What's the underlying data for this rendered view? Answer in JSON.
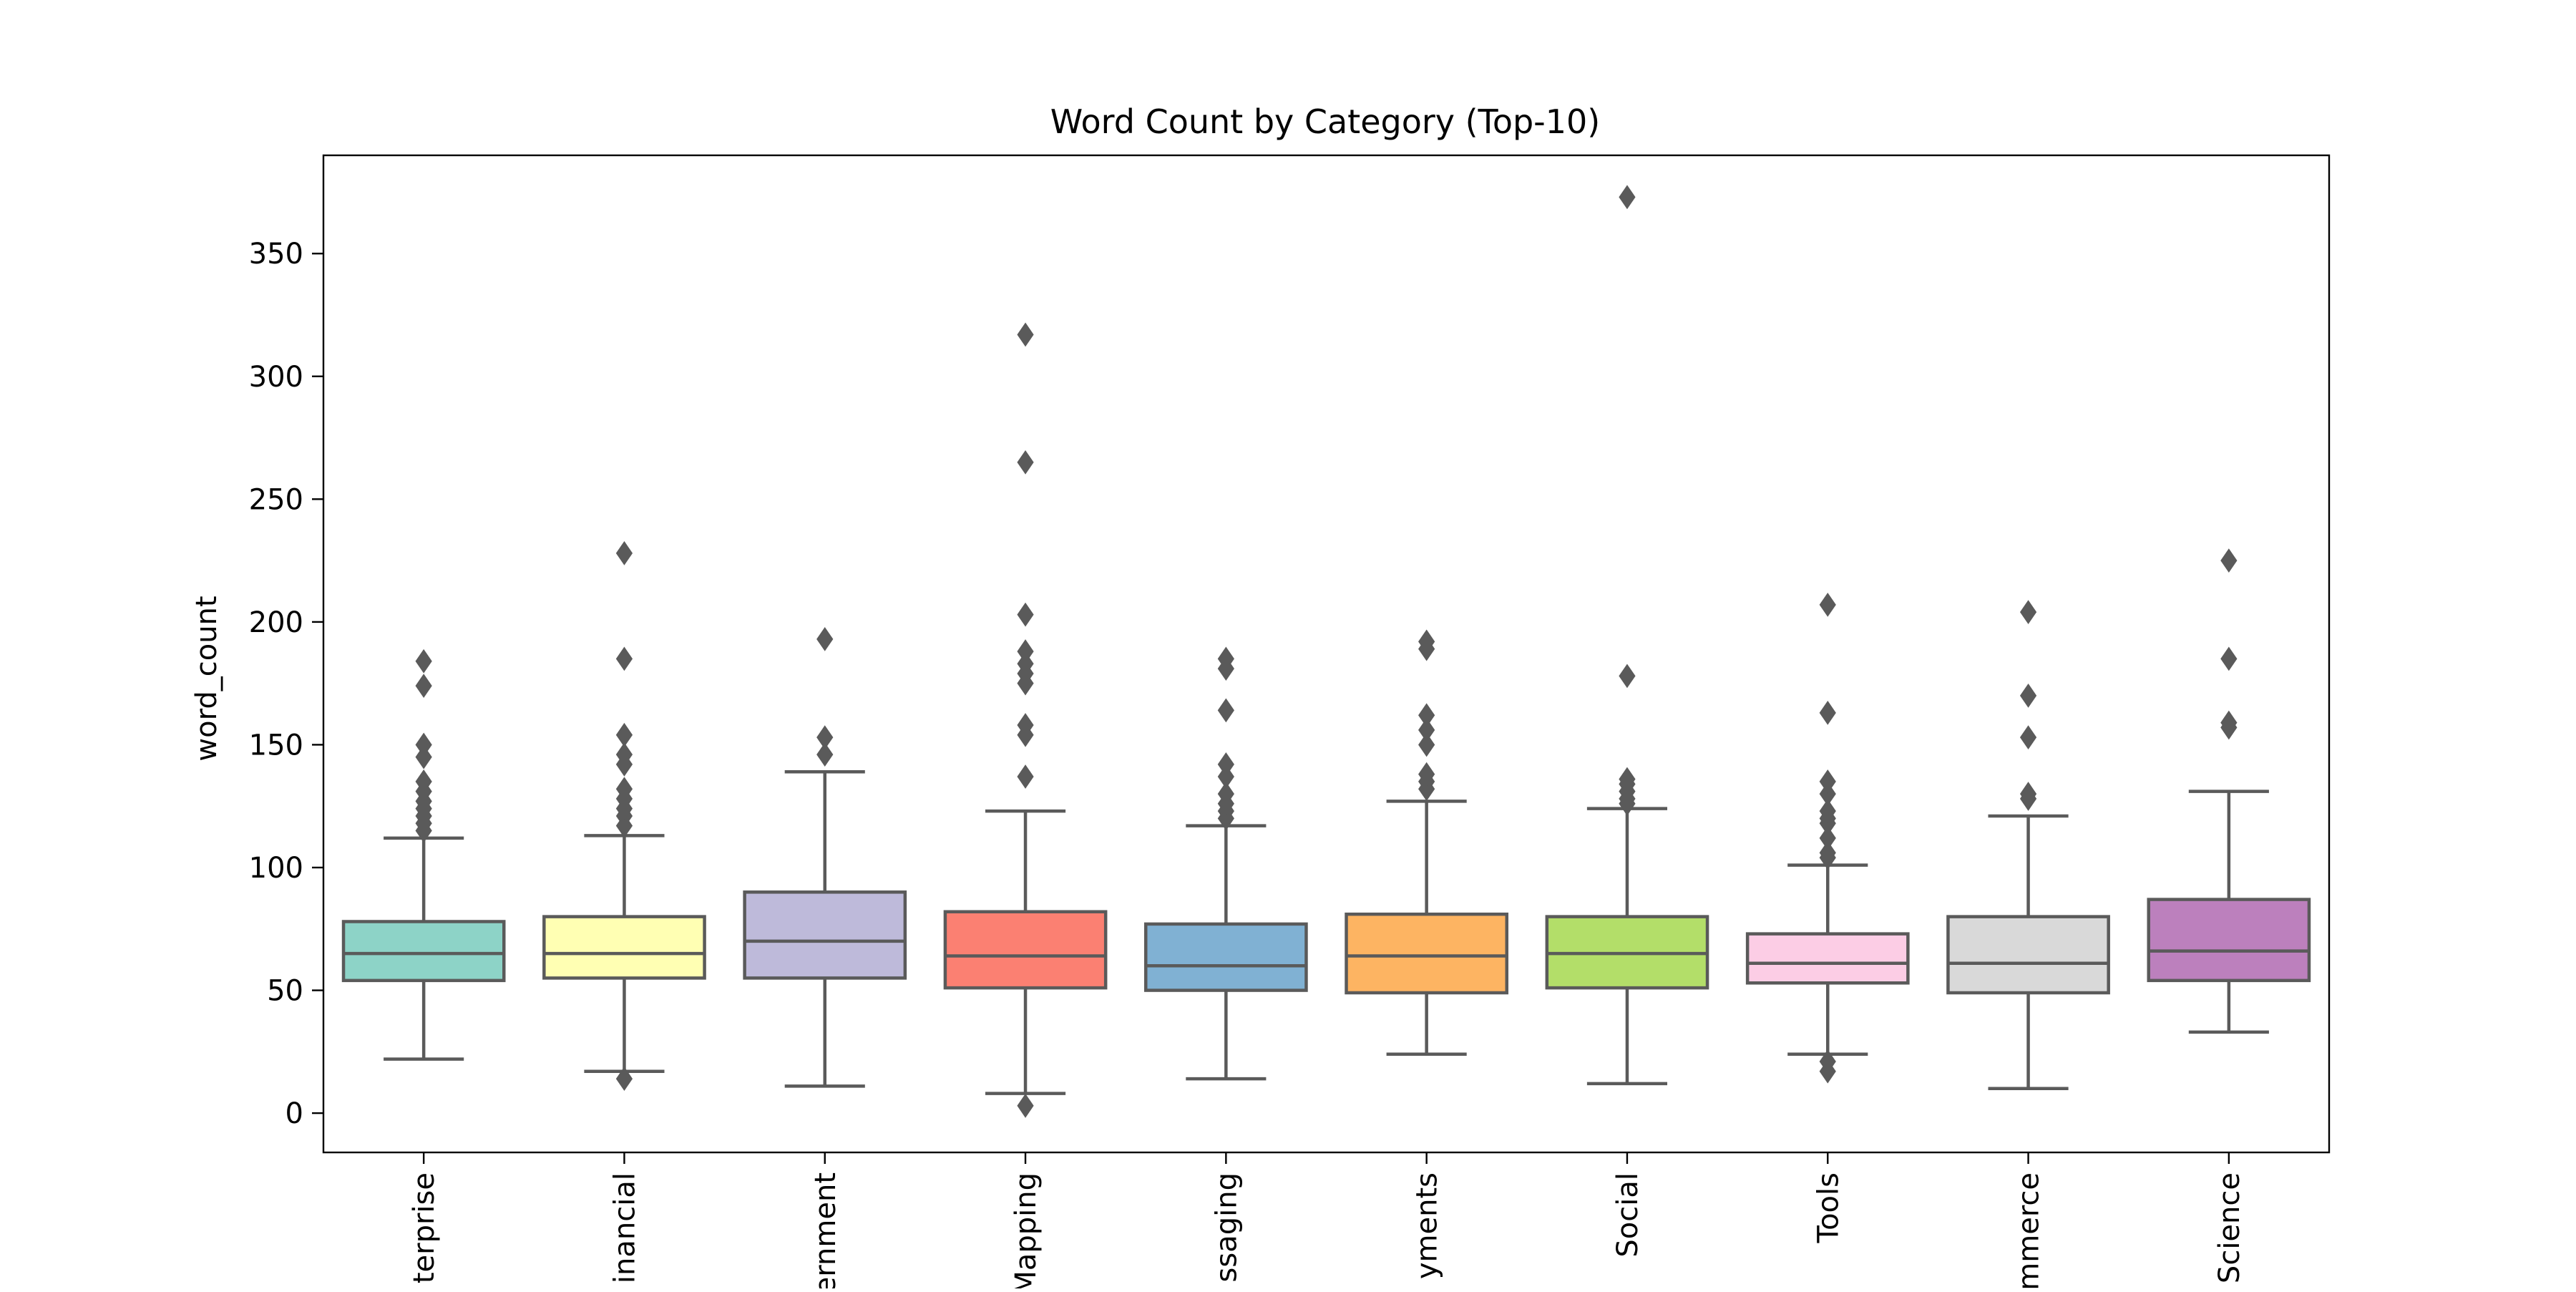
{
  "chart_data": {
    "type": "box",
    "title": "Word Count by Category (Top-10)",
    "xlabel": "",
    "ylabel": "word_count",
    "ylim": [
      -16,
      390
    ],
    "yticks": [
      0,
      50,
      100,
      150,
      200,
      250,
      300,
      350
    ],
    "grid": false,
    "categories": [
      "Enterprise",
      "Financial",
      "Government",
      "Mapping",
      "Messaging",
      "Payments",
      "Social",
      "Tools",
      "eCommerce",
      "Science"
    ],
    "category_labels_visible": [
      "terprise",
      "inancial",
      "ernment",
      "Mapping",
      "ssaging",
      "yments",
      "Social",
      "Tools",
      "mmerce",
      "Science"
    ],
    "colors": [
      "#8dd3c7",
      "#ffffb3",
      "#bebada",
      "#fb8072",
      "#80b1d3",
      "#fdb462",
      "#b3de69",
      "#fccde5",
      "#d9d9d9",
      "#bc80bd"
    ],
    "edge_color": "#5a5a5a",
    "boxes": [
      {
        "category": "Enterprise",
        "whisker_low": 22,
        "q1": 54,
        "median": 65,
        "q3": 78,
        "whisker_high": 112,
        "outliers": [
          115,
          118,
          121,
          124,
          127,
          131,
          135,
          145,
          150,
          174,
          184
        ]
      },
      {
        "category": "Financial",
        "whisker_low": 17,
        "q1": 55,
        "median": 65,
        "q3": 80,
        "whisker_high": 113,
        "outliers": [
          14,
          117,
          121,
          124,
          128,
          132,
          142,
          146,
          154,
          185,
          228
        ]
      },
      {
        "category": "Government",
        "whisker_low": 11,
        "q1": 55,
        "median": 70,
        "q3": 90,
        "whisker_high": 139,
        "outliers": [
          146,
          153,
          193
        ]
      },
      {
        "category": "Mapping",
        "whisker_low": 8,
        "q1": 51,
        "median": 64,
        "q3": 82,
        "whisker_high": 123,
        "outliers": [
          3,
          137,
          154,
          158,
          175,
          179,
          183,
          188,
          203,
          265,
          317
        ]
      },
      {
        "category": "Messaging",
        "whisker_low": 14,
        "q1": 50,
        "median": 60,
        "q3": 77,
        "whisker_high": 117,
        "outliers": [
          120,
          123,
          126,
          130,
          137,
          142,
          164,
          181,
          185
        ]
      },
      {
        "category": "Payments",
        "whisker_low": 24,
        "q1": 49,
        "median": 64,
        "q3": 81,
        "whisker_high": 127,
        "outliers": [
          132,
          135,
          138,
          150,
          156,
          162,
          189,
          192
        ]
      },
      {
        "category": "Social",
        "whisker_low": 12,
        "q1": 51,
        "median": 65,
        "q3": 80,
        "whisker_high": 124,
        "outliers": [
          126,
          128,
          131,
          134,
          136,
          178,
          373
        ]
      },
      {
        "category": "Tools",
        "whisker_low": 24,
        "q1": 53,
        "median": 61,
        "q3": 73,
        "whisker_high": 101,
        "outliers": [
          17,
          21,
          104,
          106,
          112,
          118,
          120,
          123,
          130,
          135,
          163,
          207
        ]
      },
      {
        "category": "eCommerce",
        "whisker_low": 10,
        "q1": 49,
        "median": 61,
        "q3": 80,
        "whisker_high": 121,
        "outliers": [
          128,
          130,
          153,
          170,
          204
        ]
      },
      {
        "category": "Science",
        "whisker_low": 33,
        "q1": 54,
        "median": 66,
        "q3": 87,
        "whisker_high": 131,
        "outliers": [
          157,
          159,
          185,
          225
        ]
      }
    ]
  }
}
